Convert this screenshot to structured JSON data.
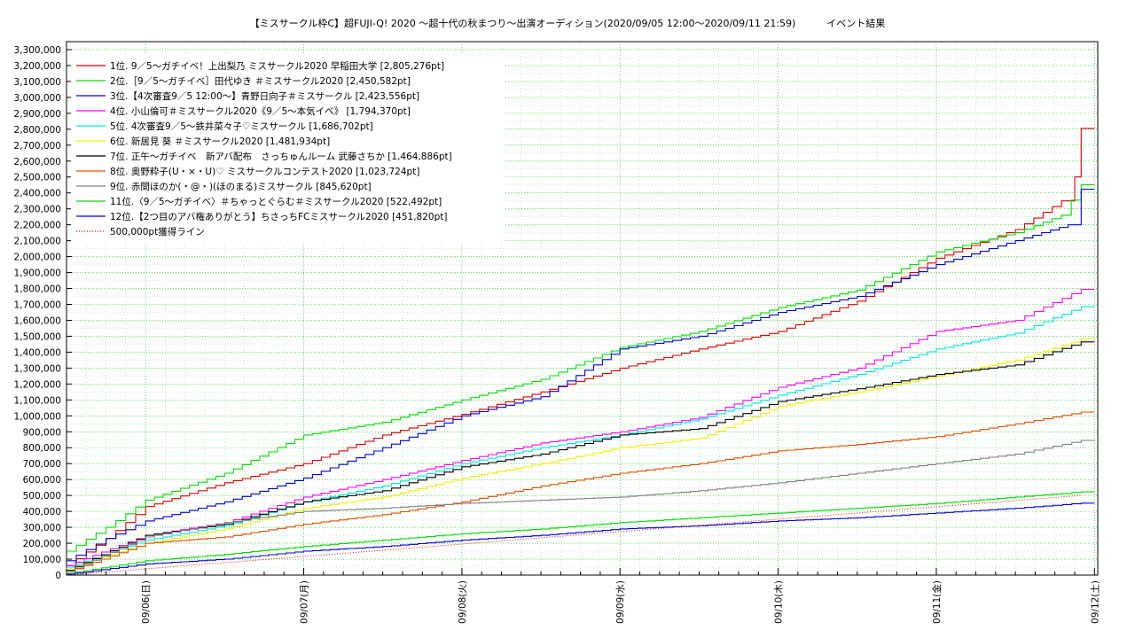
{
  "chart_data": {
    "type": "line",
    "title": "【ミスサークル枠C】超FUJI-Q! 2020 〜超十代の秋まつり〜出演オーディション(2020/09/05 12:00〜2020/09/11 21:59)          イベント結果",
    "xlabel": "",
    "ylabel": "",
    "xlim": [
      "2020/09/05 12:00",
      "2020/09/12 00:30"
    ],
    "ylim": [
      0,
      3350000
    ],
    "yticks": [
      0,
      100000,
      200000,
      300000,
      400000,
      500000,
      600000,
      700000,
      800000,
      900000,
      1000000,
      1100000,
      1200000,
      1300000,
      1400000,
      1500000,
      1600000,
      1700000,
      1800000,
      1900000,
      2000000,
      2100000,
      2200000,
      2300000,
      2400000,
      2500000,
      2600000,
      2700000,
      2800000,
      2900000,
      3000000,
      3100000,
      3200000,
      3300000
    ],
    "ytick_labels": [
      "0",
      "100,000",
      "200,000",
      "300,000",
      "400,000",
      "500,000",
      "600,000",
      "700,000",
      "800,000",
      "900,000",
      "1,000,000",
      "1,100,000",
      "1,200,000",
      "1,300,000",
      "1,400,000",
      "1,500,000",
      "1,600,000",
      "1,700,000",
      "1,800,000",
      "1,900,000",
      "2,000,000",
      "2,100,000",
      "2,200,000",
      "2,300,000",
      "2,400,000",
      "2,500,000",
      "2,600,000",
      "2,700,000",
      "2,800,000",
      "2,900,000",
      "3,000,000",
      "3,100,000",
      "3,200,000",
      "3,300,000"
    ],
    "xticks": [
      "2020/09/06 00:00",
      "2020/09/07 00:00",
      "2020/09/08 00:00",
      "2020/09/09 00:00",
      "2020/09/10 00:00",
      "2020/09/11 00:00",
      "2020/09/12 00:00"
    ],
    "xtick_labels": [
      "09/06(日)",
      "09/07(月)",
      "09/08(火)",
      "09/09(水)",
      "09/10(木)",
      "09/11(金)",
      "09/12(土)"
    ],
    "grid": true,
    "legend_position": "top-left",
    "series": [
      {
        "name": "1位. 9／5〜ガチイベ！上出梨乃 ミスサークル2020 早稲田大学 [2,805,276pt]",
        "color": "#e00000",
        "x": [
          "2020/09/05 12:00",
          "2020/09/05 18:00",
          "2020/09/06 00:00",
          "2020/09/06 12:00",
          "2020/09/07 00:00",
          "2020/09/07 12:00",
          "2020/09/08 00:00",
          "2020/09/08 12:00",
          "2020/09/09 00:00",
          "2020/09/09 12:00",
          "2020/09/10 00:00",
          "2020/09/10 12:00",
          "2020/09/11 00:00",
          "2020/09/11 12:00",
          "2020/09/11 19:00",
          "2020/09/11 21:00",
          "2020/09/11 21:59",
          "2020/09/12 00:00"
        ],
        "y": [
          60000,
          230000,
          430000,
          580000,
          700000,
          880000,
          1010000,
          1150000,
          1300000,
          1420000,
          1530000,
          1720000,
          1990000,
          2170000,
          2350000,
          2500000,
          2805276,
          2805276
        ]
      },
      {
        "name": "2位.［9／5〜ガチイベ］田代ゆき ＃ミスサークル2020 [2,450,582pt]",
        "color": "#00dd00",
        "x": [
          "2020/09/05 12:00",
          "2020/09/05 18:00",
          "2020/09/06 00:00",
          "2020/09/06 12:00",
          "2020/09/07 00:00",
          "2020/09/07 12:00",
          "2020/09/08 00:00",
          "2020/09/08 12:00",
          "2020/09/09 00:00",
          "2020/09/09 12:00",
          "2020/09/10 00:00",
          "2020/09/10 12:00",
          "2020/09/11 00:00",
          "2020/09/11 12:00",
          "2020/09/11 19:00",
          "2020/09/11 21:59",
          "2020/09/12 00:00"
        ],
        "y": [
          150000,
          300000,
          470000,
          640000,
          880000,
          960000,
          1100000,
          1230000,
          1430000,
          1530000,
          1680000,
          1790000,
          2030000,
          2150000,
          2260000,
          2450582,
          2450582
        ]
      },
      {
        "name": "3位.【4次審査9／5 12:00〜】青野日向子＃ミスサークル [2,423,556pt]",
        "color": "#0000e0",
        "x": [
          "2020/09/05 12:00",
          "2020/09/05 18:00",
          "2020/09/06 00:00",
          "2020/09/06 12:00",
          "2020/09/07 00:00",
          "2020/09/07 12:00",
          "2020/09/08 00:00",
          "2020/09/08 12:00",
          "2020/09/09 00:00",
          "2020/09/09 12:00",
          "2020/09/10 00:00",
          "2020/09/10 12:00",
          "2020/09/11 00:00",
          "2020/09/11 12:00",
          "2020/09/11 20:00",
          "2020/09/11 21:59",
          "2020/09/12 00:00"
        ],
        "y": [
          90000,
          230000,
          340000,
          460000,
          610000,
          800000,
          1000000,
          1120000,
          1420000,
          1500000,
          1650000,
          1750000,
          1950000,
          2100000,
          2200000,
          2423556,
          2423556
        ]
      },
      {
        "name": "4位. 小山倫可＃ミスサークル2020《9／5〜本気イベ》 [1,794,370pt]",
        "color": "#ff00ff",
        "x": [
          "2020/09/05 12:00",
          "2020/09/06 00:00",
          "2020/09/06 12:00",
          "2020/09/07 00:00",
          "2020/09/07 12:00",
          "2020/09/08 00:00",
          "2020/09/08 12:00",
          "2020/09/09 00:00",
          "2020/09/09 12:00",
          "2020/09/10 00:00",
          "2020/09/10 12:00",
          "2020/09/11 00:00",
          "2020/09/11 12:00",
          "2020/09/11 21:59",
          "2020/09/12 00:00"
        ],
        "y": [
          60000,
          250000,
          330000,
          490000,
          600000,
          720000,
          830000,
          900000,
          990000,
          1180000,
          1300000,
          1530000,
          1600000,
          1794370,
          1794370
        ]
      },
      {
        "name": "5位. 4次審査9／5〜鉄井菜々子♡ミスサークル [1,686,702pt]",
        "color": "#00e8e8",
        "x": [
          "2020/09/05 12:00",
          "2020/09/06 00:00",
          "2020/09/06 12:00",
          "2020/09/07 00:00",
          "2020/09/07 12:00",
          "2020/09/08 00:00",
          "2020/09/08 12:00",
          "2020/09/09 00:00",
          "2020/09/09 12:00",
          "2020/09/10 00:00",
          "2020/09/10 12:00",
          "2020/09/11 00:00",
          "2020/09/11 12:00",
          "2020/09/11 21:59",
          "2020/09/12 00:00"
        ],
        "y": [
          50000,
          220000,
          310000,
          460000,
          560000,
          700000,
          800000,
          880000,
          980000,
          1130000,
          1260000,
          1420000,
          1520000,
          1686702,
          1686702
        ]
      },
      {
        "name": "6位. 新居見 葵 ＃ミスサークル2020 [1,481,934pt]",
        "color": "#f0f000",
        "x": [
          "2020/09/05 12:00",
          "2020/09/06 00:00",
          "2020/09/06 12:00",
          "2020/09/07 00:00",
          "2020/09/07 12:00",
          "2020/09/08 00:00",
          "2020/09/08 12:00",
          "2020/09/09 00:00",
          "2020/09/09 12:00",
          "2020/09/10 00:00",
          "2020/09/10 12:00",
          "2020/09/11 00:00",
          "2020/09/11 12:00",
          "2020/09/11 21:59",
          "2020/09/12 00:00"
        ],
        "y": [
          40000,
          200000,
          290000,
          420000,
          490000,
          610000,
          700000,
          800000,
          860000,
          1060000,
          1150000,
          1250000,
          1350000,
          1481934,
          1481934
        ]
      },
      {
        "name": "7位. 正午〜ガチイベ　新アバ配布　さっちゅんルーム 武藤さちか [1,464,886pt]",
        "color": "#000000",
        "x": [
          "2020/09/05 12:00",
          "2020/09/06 00:00",
          "2020/09/06 12:00",
          "2020/09/07 00:00",
          "2020/09/07 12:00",
          "2020/09/08 00:00",
          "2020/09/08 12:00",
          "2020/09/09 00:00",
          "2020/09/09 12:00",
          "2020/09/10 00:00",
          "2020/09/10 12:00",
          "2020/09/11 00:00",
          "2020/09/11 12:00",
          "2020/09/11 21:59",
          "2020/09/12 00:00"
        ],
        "y": [
          30000,
          250000,
          320000,
          460000,
          530000,
          680000,
          760000,
          880000,
          920000,
          1090000,
          1170000,
          1260000,
          1320000,
          1464886,
          1464886
        ]
      },
      {
        "name": "8位. 奥野粋子(U・×・U)♡ ミスサークルコンテスト2020 [1,023,724pt]",
        "color": "#e05000",
        "x": [
          "2020/09/05 12:00",
          "2020/09/06 00:00",
          "2020/09/06 12:00",
          "2020/09/07 00:00",
          "2020/09/07 12:00",
          "2020/09/08 00:00",
          "2020/09/08 12:00",
          "2020/09/09 00:00",
          "2020/09/09 12:00",
          "2020/09/10 00:00",
          "2020/09/10 12:00",
          "2020/09/11 00:00",
          "2020/09/11 12:00",
          "2020/09/11 21:59",
          "2020/09/12 00:00"
        ],
        "y": [
          20000,
          200000,
          240000,
          320000,
          380000,
          460000,
          560000,
          640000,
          700000,
          780000,
          820000,
          870000,
          950000,
          1023724,
          1023724
        ]
      },
      {
        "name": "9位. 赤間ほのか(・@・)(ほのまる)ミスサークル [845,620pt]",
        "color": "#808080",
        "x": [
          "2020/09/05 12:00",
          "2020/09/06 00:00",
          "2020/09/06 12:00",
          "2020/09/07 00:00",
          "2020/09/07 12:00",
          "2020/09/08 00:00",
          "2020/09/08 12:00",
          "2020/09/09 00:00",
          "2020/09/09 12:00",
          "2020/09/10 00:00",
          "2020/09/10 12:00",
          "2020/09/11 00:00",
          "2020/09/11 12:00",
          "2020/09/11 21:59",
          "2020/09/12 00:00"
        ],
        "y": [
          20000,
          240000,
          330000,
          400000,
          420000,
          450000,
          470000,
          490000,
          530000,
          580000,
          640000,
          700000,
          760000,
          845620,
          845620
        ]
      },
      {
        "name": "11位.〈9／5〜ガチイベ〉＃ちゃっとぐらむ＃ミスサークル2020 [522,492pt]",
        "color": "#00dd00",
        "x": [
          "2020/09/05 12:00",
          "2020/09/06 00:00",
          "2020/09/06 12:00",
          "2020/09/07 00:00",
          "2020/09/07 12:00",
          "2020/09/08 00:00",
          "2020/09/08 12:00",
          "2020/09/09 00:00",
          "2020/09/09 12:00",
          "2020/09/10 00:00",
          "2020/09/10 12:00",
          "2020/09/11 00:00",
          "2020/09/11 12:00",
          "2020/09/11 21:59",
          "2020/09/12 00:00"
        ],
        "y": [
          10000,
          90000,
          130000,
          180000,
          220000,
          260000,
          290000,
          330000,
          360000,
          390000,
          420000,
          450000,
          490000,
          522492,
          522492
        ]
      },
      {
        "name": "12位.【2つ目のアバ権ありがとう】ちさっちFCミスサークル2020 [451,820pt]",
        "color": "#0000e0",
        "x": [
          "2020/09/05 12:00",
          "2020/09/06 00:00",
          "2020/09/06 12:00",
          "2020/09/07 00:00",
          "2020/09/07 12:00",
          "2020/09/08 00:00",
          "2020/09/08 12:00",
          "2020/09/09 00:00",
          "2020/09/09 12:00",
          "2020/09/10 00:00",
          "2020/09/10 12:00",
          "2020/09/11 00:00",
          "2020/09/11 12:00",
          "2020/09/11 21:59",
          "2020/09/12 00:00"
        ],
        "y": [
          5000,
          70000,
          100000,
          150000,
          180000,
          220000,
          250000,
          290000,
          310000,
          340000,
          360000,
          390000,
          420000,
          451820,
          451820
        ]
      },
      {
        "name": "500,000pt獲得ライン",
        "color": "#ff0000",
        "dashed": true,
        "x": [
          "2020/09/05 12:00",
          "2020/09/11 22:00"
        ],
        "y": [
          0,
          500000
        ]
      }
    ]
  }
}
